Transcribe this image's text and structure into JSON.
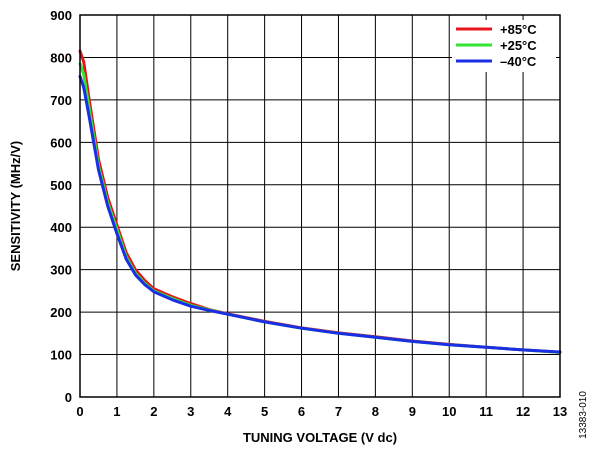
{
  "chart_data": {
    "type": "line",
    "xlabel": "TUNING VOLTAGE (V dc)",
    "ylabel": "SENSITIVITY (MHz/V)",
    "xlim": [
      0,
      13
    ],
    "ylim": [
      0,
      900
    ],
    "xticks": [
      0,
      1,
      2,
      3,
      4,
      5,
      6,
      7,
      8,
      9,
      10,
      11,
      12,
      13
    ],
    "yticks": [
      0,
      100,
      200,
      300,
      400,
      500,
      600,
      700,
      800,
      900
    ],
    "grid": true,
    "legend_position": "top-right",
    "figure_id": "13383-010",
    "series": [
      {
        "name": "+85°C",
        "color": "#e8141b",
        "x": [
          0,
          0.1,
          0.25,
          0.5,
          0.75,
          1.0,
          1.25,
          1.5,
          1.75,
          2.0,
          2.5,
          3.0,
          3.5,
          4.0,
          5.0,
          6.0,
          7.0,
          8.0,
          9.0,
          10.0,
          11.0,
          12.0,
          13.0
        ],
        "values": [
          815,
          790,
          700,
          560,
          470,
          405,
          340,
          300,
          275,
          255,
          236,
          220,
          206,
          196,
          178,
          163,
          151,
          142,
          132,
          124,
          117,
          111,
          105
        ]
      },
      {
        "name": "+25°C",
        "color": "#33e633",
        "x": [
          0,
          0.1,
          0.25,
          0.5,
          0.75,
          1.0,
          1.25,
          1.5,
          1.75,
          2.0,
          2.5,
          3.0,
          3.5,
          4.0,
          5.0,
          6.0,
          7.0,
          8.0,
          9.0,
          10.0,
          11.0,
          12.0,
          13.0
        ],
        "values": [
          785,
          760,
          680,
          545,
          458,
          395,
          330,
          292,
          268,
          250,
          232,
          216,
          205,
          195,
          177,
          162,
          150,
          141,
          131,
          123,
          117,
          111,
          105
        ]
      },
      {
        "name": "–40°C",
        "color": "#1a2ee6",
        "x": [
          0,
          0.1,
          0.25,
          0.5,
          0.75,
          1.0,
          1.25,
          1.5,
          1.75,
          2.0,
          2.5,
          3.0,
          3.5,
          4.0,
          5.0,
          6.0,
          7.0,
          8.0,
          9.0,
          10.0,
          11.0,
          12.0,
          13.0
        ],
        "values": [
          755,
          730,
          660,
          535,
          450,
          385,
          325,
          288,
          265,
          248,
          229,
          214,
          204,
          195,
          177,
          162,
          150,
          141,
          131,
          123,
          117,
          111,
          106
        ]
      }
    ]
  }
}
